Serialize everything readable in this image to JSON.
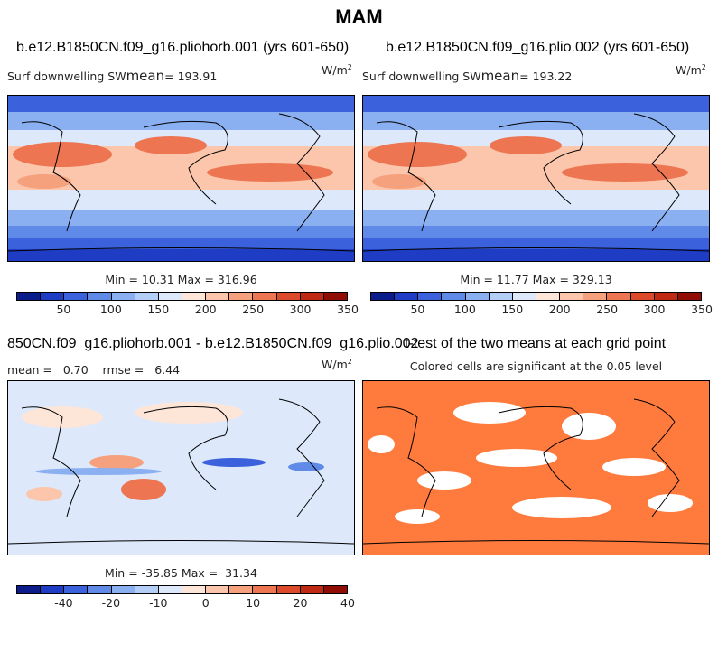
{
  "title": "MAM",
  "panels": [
    {
      "case": "b.e12.B1850CN.f09_g16.pliohorb.001 (yrs 601-650)",
      "left_label": "Surf downwelling SW",
      "mean_label": "mean",
      "mean_value": "193.91",
      "units_base": "W/m",
      "units_exp": "2",
      "minmax": "Min =  10.31 Max = 316.96"
    },
    {
      "case": "b.e12.B1850CN.f09_g16.plio.002 (yrs 601-650)",
      "left_label": "Surf downwelling SW",
      "mean_label": "mean",
      "mean_value": "193.22",
      "units_base": "W/m",
      "units_exp": "2",
      "minmax": "Min =  11.77 Max = 329.13"
    },
    {
      "case": "850CN.f09_g16.pliohorb.001 - b.e12.B1850CN.f09_g16.plio.002",
      "stats": "mean =   0.70    rmse =   6.44",
      "units_base": "W/m",
      "units_exp": "2",
      "minmax": "Min = -35.85 Max =  31.34"
    },
    {
      "case": "t-test of the two means at each grid point",
      "note": "Colored cells are significant at the 0.05 level"
    }
  ],
  "colorbar_abs": {
    "ticks": [
      "50",
      "100",
      "150",
      "200",
      "250",
      "300",
      "350"
    ],
    "colors": [
      "#0a1d8a",
      "#1f3dc4",
      "#3b62dc",
      "#5f8ae8",
      "#8ab0f1",
      "#b4cff7",
      "#dde9fb",
      "#fde5d8",
      "#fbc6ab",
      "#f6a17d",
      "#ee7551",
      "#dd4a2b",
      "#c02a15",
      "#8f0d05"
    ]
  },
  "colorbar_diff": {
    "ticks": [
      "-40",
      "-20",
      "-10",
      "0",
      "10",
      "20",
      "40"
    ],
    "colors": [
      "#0a1d8a",
      "#1f3dc4",
      "#3b62dc",
      "#5f8ae8",
      "#8ab0f1",
      "#b4cff7",
      "#dde9fb",
      "#fde5d8",
      "#fbc6ab",
      "#f6a17d",
      "#ee7551",
      "#dd4a2b",
      "#c02a15",
      "#8f0d05"
    ]
  },
  "significance_color": "#ff7a3d"
}
